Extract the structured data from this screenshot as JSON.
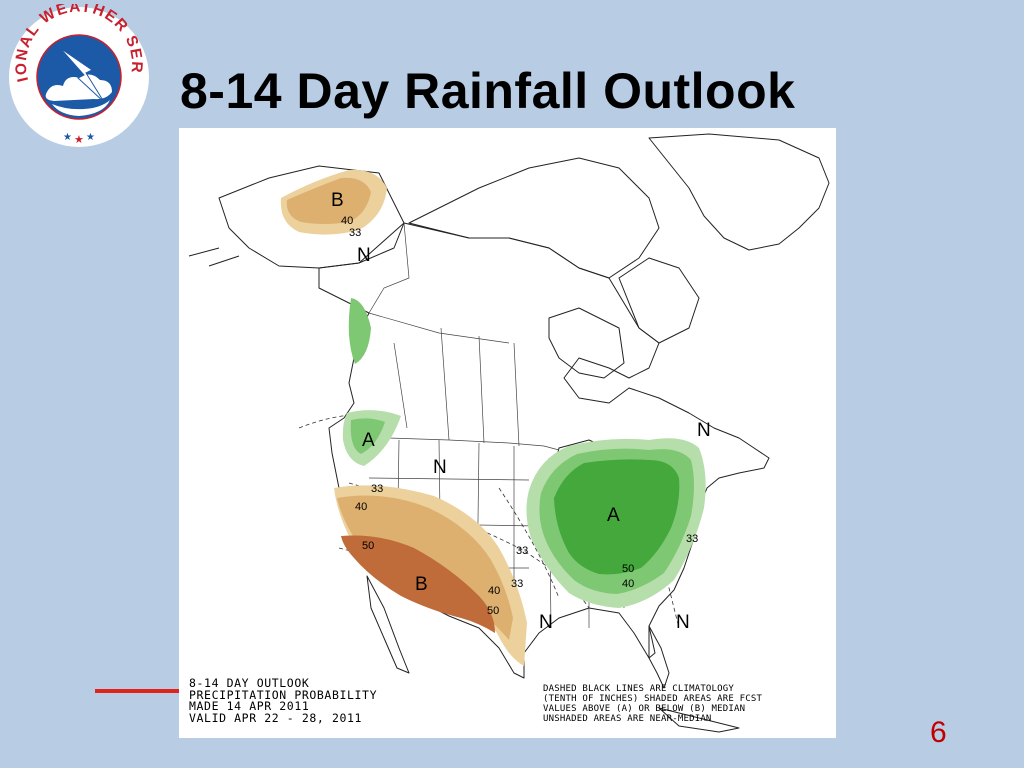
{
  "slide": {
    "title": "8-14 Day Rainfall Outlook",
    "page_number": "6",
    "accent_color": "#e0241b"
  },
  "logo": {
    "text": "NATIONAL WEATHER SERVICE",
    "icon": "nws-logo-icon"
  },
  "map": {
    "legend_left": [
      "8-14 DAY OUTLOOK",
      "PRECIPITATION PROBABILITY",
      "MADE  14 APR 2011",
      "VALID  APR 22 - 28, 2011"
    ],
    "legend_right": [
      "DASHED BLACK LINES ARE CLIMATOLOGY",
      "(TENTH OF INCHES) SHADED AREAS ARE FCST",
      "VALUES ABOVE (A) OR BELOW (B) MEDIAN",
      "UNSHADED AREAS ARE NEAR-MEDIAN"
    ],
    "region_labels": {
      "alaska_b": "B",
      "alaska_n": "N",
      "northwest_a": "A",
      "montana_n": "N",
      "southwest_b": "B",
      "east_a": "A",
      "texas_n": "N",
      "southeast_n": "N",
      "new_england_n": "N"
    },
    "contour_labels": {
      "ak_40": "40",
      "ak_33": "33",
      "sw_33": "33",
      "sw_40": "40",
      "sw_50a": "50",
      "sw_40b": "40",
      "sw_50b": "50",
      "sw_33b": "33",
      "e_33a": "33",
      "e_33b": "33",
      "e_50": "50",
      "e_40": "40"
    },
    "colors": {
      "below_33": "#ecd19c",
      "below_40": "#ddb06f",
      "below_50": "#bf6b3a",
      "above_33": "#b6deaa",
      "above_40": "#7fc873",
      "above_50": "#44a83c"
    }
  }
}
